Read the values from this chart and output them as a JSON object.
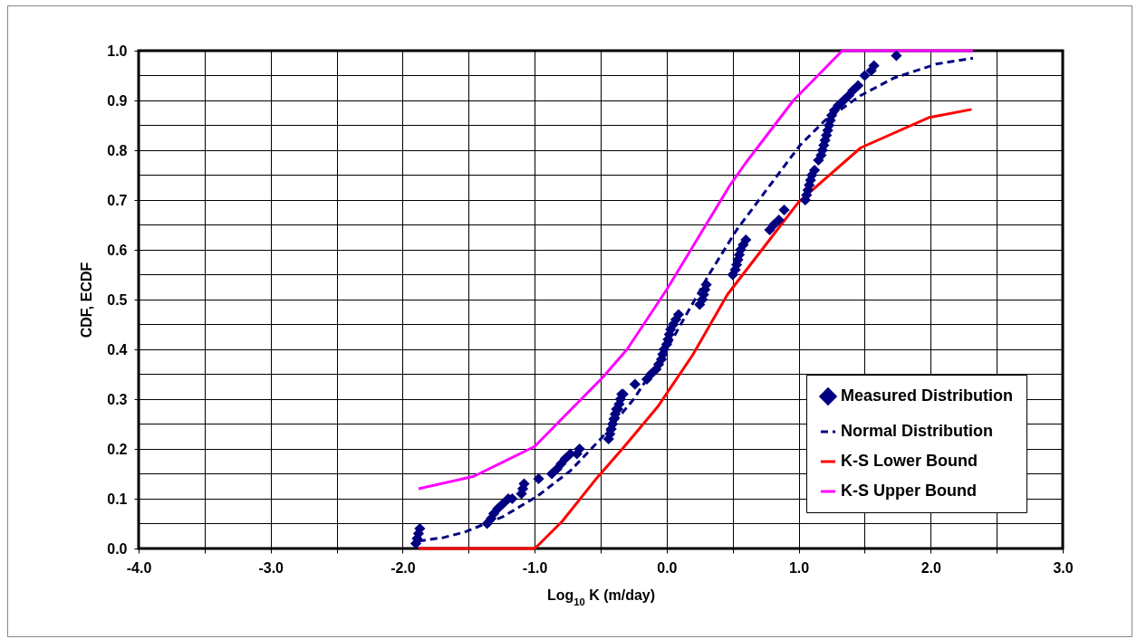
{
  "chart_data": {
    "type": "line",
    "xlabel": "Log$_{10}$ K (m/day)",
    "ylabel": "CDF, ECDF",
    "xlim": [
      -4,
      3
    ],
    "ylim": [
      0,
      1
    ],
    "xticks": [
      {
        "value": -4,
        "label": "-4.0"
      },
      {
        "value": -3.5,
        "label": null
      },
      {
        "value": -3,
        "label": "-3.0"
      },
      {
        "value": -2.5,
        "label": null
      },
      {
        "value": -2,
        "label": "-2.0"
      },
      {
        "value": -1.5,
        "label": null
      },
      {
        "value": -1,
        "label": "-1.0"
      },
      {
        "value": -0.5,
        "label": null
      },
      {
        "value": 0,
        "label": "0.0"
      },
      {
        "value": 0.5,
        "label": null
      },
      {
        "value": 1,
        "label": "1.0"
      },
      {
        "value": 1.5,
        "label": null
      },
      {
        "value": 2,
        "label": "2.0"
      },
      {
        "value": 2.5,
        "label": null
      },
      {
        "value": 3,
        "label": "3.0"
      }
    ],
    "yticks": [
      {
        "value": 0,
        "label": "0.0"
      },
      {
        "value": 0.05,
        "label": null
      },
      {
        "value": 0.1,
        "label": "0.1"
      },
      {
        "value": 0.15,
        "label": null
      },
      {
        "value": 0.2,
        "label": "0.2"
      },
      {
        "value": 0.25,
        "label": null
      },
      {
        "value": 0.3,
        "label": "0.3"
      },
      {
        "value": 0.35,
        "label": null
      },
      {
        "value": 0.4,
        "label": "0.4"
      },
      {
        "value": 0.45,
        "label": null
      },
      {
        "value": 0.5,
        "label": "0.5"
      },
      {
        "value": 0.55,
        "label": null
      },
      {
        "value": 0.6,
        "label": "0.6"
      },
      {
        "value": 0.65,
        "label": null
      },
      {
        "value": 0.7,
        "label": "0.7"
      },
      {
        "value": 0.75,
        "label": null
      },
      {
        "value": 0.8,
        "label": "0.8"
      },
      {
        "value": 0.85,
        "label": null
      },
      {
        "value": 0.9,
        "label": "0.9"
      },
      {
        "value": 0.95,
        "label": null
      },
      {
        "value": 1,
        "label": "1.0"
      }
    ],
    "grid": true,
    "legend": "bottom right",
    "series": [
      {
        "name": "Measured Distribution",
        "type": "scatter",
        "marker": "diamond",
        "color": "#000080",
        "x": [
          -1.9,
          -1.89,
          -1.88,
          -1.87,
          -1.36,
          -1.33,
          -1.31,
          -1.28,
          -1.24,
          -1.2,
          -1.17,
          -1.1,
          -1.09,
          -1.08,
          -0.97,
          -0.87,
          -0.83,
          -0.8,
          -0.77,
          -0.73,
          -0.68,
          -0.66,
          -0.44,
          -0.43,
          -0.42,
          -0.41,
          -0.4,
          -0.39,
          -0.38,
          -0.37,
          -0.36,
          -0.35,
          -0.34,
          -0.33,
          -0.24,
          -0.15,
          -0.12,
          -0.08,
          -0.06,
          -0.04,
          -0.03,
          -0.02,
          0,
          0.01,
          0.02,
          0.03,
          0.05,
          0.07,
          0.09,
          0.25,
          0.27,
          0.28,
          0.29,
          0.3,
          0.5,
          0.52,
          0.53,
          0.54,
          0.55,
          0.56,
          0.58,
          0.6,
          0.78,
          0.81,
          0.85,
          0.89,
          1.05,
          1.06,
          1.07,
          1.08,
          1.09,
          1.1,
          1.12,
          1.15,
          1.17,
          1.18,
          1.19,
          1.2,
          1.21,
          1.22,
          1.23,
          1.24,
          1.25,
          1.27,
          1.3,
          1.34,
          1.38,
          1.41,
          1.45,
          1.5,
          1.55,
          1.57,
          1.74
        ],
        "values": [
          0.01,
          0.02,
          0.03,
          0.04,
          0.05,
          0.06,
          0.07,
          0.08,
          0.09,
          0.1,
          0.1,
          0.11,
          0.12,
          0.13,
          0.14,
          0.15,
          0.16,
          0.17,
          0.18,
          0.19,
          0.19,
          0.2,
          0.22,
          0.23,
          0.24,
          0.25,
          0.26,
          0.27,
          0.28,
          0.28,
          0.29,
          0.3,
          0.31,
          0.31,
          0.33,
          0.34,
          0.35,
          0.36,
          0.37,
          0.38,
          0.39,
          0.4,
          0.41,
          0.42,
          0.43,
          0.44,
          0.45,
          0.46,
          0.47,
          0.49,
          0.5,
          0.51,
          0.52,
          0.53,
          0.55,
          0.56,
          0.57,
          0.58,
          0.59,
          0.6,
          0.61,
          0.62,
          0.64,
          0.65,
          0.66,
          0.68,
          0.7,
          0.71,
          0.72,
          0.73,
          0.74,
          0.75,
          0.76,
          0.78,
          0.79,
          0.8,
          0.81,
          0.82,
          0.83,
          0.84,
          0.85,
          0.86,
          0.87,
          0.88,
          0.89,
          0.9,
          0.91,
          0.92,
          0.93,
          0.95,
          0.96,
          0.97,
          0.99
        ]
      },
      {
        "name": "Normal Distribution",
        "line_style": "dashed",
        "color": "#000080",
        "x": [
          -1.88,
          -1.69,
          -1.53,
          -1.24,
          -0.98,
          -0.73,
          -0.5,
          -0.25,
          0,
          0.32,
          0.53,
          0.84,
          1.01,
          1.2,
          1.47,
          1.72,
          2.04,
          2.32
        ],
        "values": [
          0.015,
          0.022,
          0.033,
          0.064,
          0.105,
          0.156,
          0.22,
          0.3,
          0.4,
          0.55,
          0.64,
          0.75,
          0.81,
          0.86,
          0.91,
          0.945,
          0.973,
          0.985
        ]
      },
      {
        "name": "K-S Lower Bound",
        "line_style": "solid",
        "color": "#ff0000",
        "x": [
          -1.88,
          -1,
          -0.96,
          -0.79,
          -0.54,
          -0.32,
          -0.07,
          0.2,
          0.46,
          0.75,
          1,
          1.47,
          1.99,
          2.31
        ],
        "values": [
          0,
          0,
          0.01,
          0.055,
          0.138,
          0.205,
          0.284,
          0.39,
          0.51,
          0.61,
          0.696,
          0.805,
          0.866,
          0.882
        ]
      },
      {
        "name": "K-S Upper Bound",
        "line_style": "solid",
        "color": "#ff00ff",
        "x": [
          -1.88,
          -1.46,
          -1,
          -0.48,
          -0.3,
          0,
          0.48,
          0.6,
          0.96,
          1.33,
          2.32
        ],
        "values": [
          0.12,
          0.145,
          0.205,
          0.345,
          0.4,
          0.52,
          0.73,
          0.775,
          0.9,
          1,
          1
        ]
      }
    ]
  }
}
